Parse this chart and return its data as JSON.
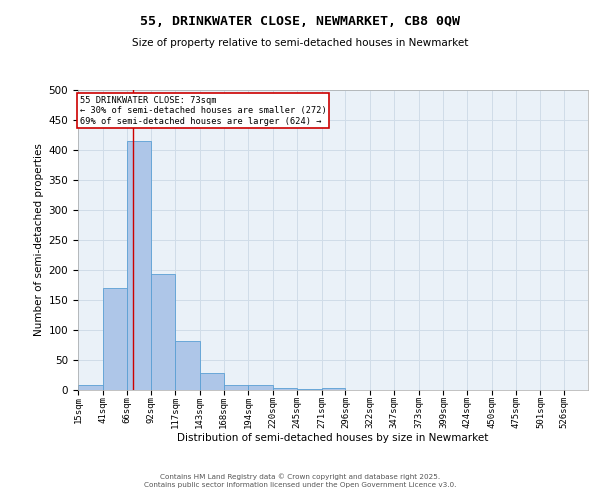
{
  "title": "55, DRINKWATER CLOSE, NEWMARKET, CB8 0QW",
  "subtitle": "Size of property relative to semi-detached houses in Newmarket",
  "xlabel": "Distribution of semi-detached houses by size in Newmarket",
  "ylabel": "Number of semi-detached properties",
  "bar_labels": [
    "15sqm",
    "41sqm",
    "66sqm",
    "92sqm",
    "117sqm",
    "143sqm",
    "168sqm",
    "194sqm",
    "220sqm",
    "245sqm",
    "271sqm",
    "296sqm",
    "322sqm",
    "347sqm",
    "373sqm",
    "399sqm",
    "424sqm",
    "450sqm",
    "475sqm",
    "501sqm",
    "526sqm"
  ],
  "bar_values": [
    9,
    170,
    415,
    193,
    81,
    29,
    9,
    8,
    4,
    1,
    4,
    0,
    0,
    0,
    0,
    0,
    0,
    0,
    0,
    0,
    0
  ],
  "bar_color": "#aec6e8",
  "bar_edge_color": "#5a9fd4",
  "property_line_x": 73,
  "bin_edges": [
    15,
    41,
    66,
    92,
    117,
    143,
    168,
    194,
    220,
    245,
    271,
    296,
    322,
    347,
    373,
    399,
    424,
    450,
    475,
    501,
    526,
    551
  ],
  "annotation_line1": "55 DRINKWATER CLOSE: 73sqm",
  "annotation_line2": "← 30% of semi-detached houses are smaller (272)",
  "annotation_line3": "69% of semi-detached houses are larger (624) →",
  "annotation_box_color": "#ffffff",
  "annotation_box_edge": "#cc0000",
  "vline_color": "#cc0000",
  "grid_color": "#d0dce8",
  "background_color": "#eaf1f8",
  "footer_line1": "Contains HM Land Registry data © Crown copyright and database right 2025.",
  "footer_line2": "Contains public sector information licensed under the Open Government Licence v3.0.",
  "ylim": [
    0,
    500
  ],
  "yticks": [
    0,
    50,
    100,
    150,
    200,
    250,
    300,
    350,
    400,
    450,
    500
  ]
}
